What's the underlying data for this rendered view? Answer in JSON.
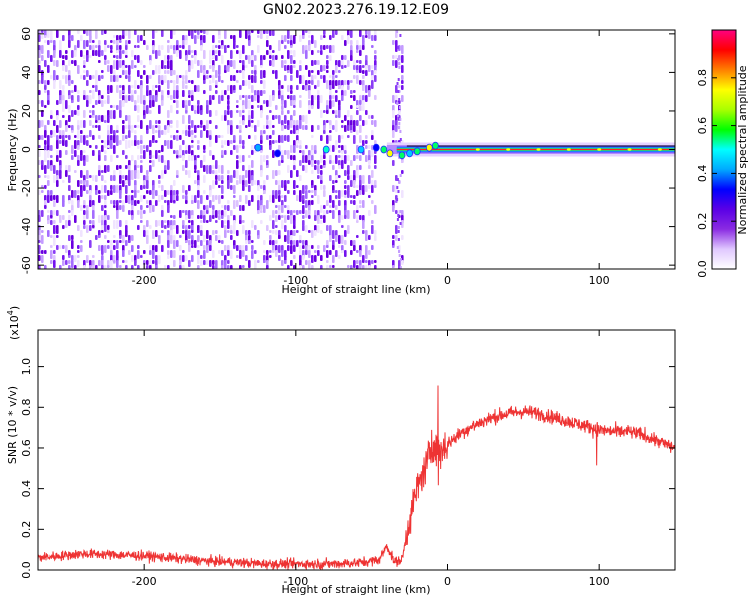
{
  "title": "GN02.2023.276.19.12.E09",
  "chart_data": [
    {
      "type": "heatmap",
      "name": "spectrogram",
      "xlabel": "Height of straight line (km)",
      "ylabel": "Frequency (Hz)",
      "xlim": [
        -270,
        150
      ],
      "ylim": [
        -62,
        62
      ],
      "x_ticks": [
        -200,
        -100,
        0,
        100
      ],
      "y_ticks": [
        -60,
        -40,
        -20,
        0,
        20,
        40,
        60
      ],
      "colorbar": {
        "label": "Normalized spectral amplitude",
        "range": [
          0,
          1
        ],
        "ticks": [
          0.0,
          0.2,
          0.4,
          0.6,
          0.8
        ],
        "tick_labels": [
          "0.0",
          "0.2",
          "0.4",
          "0.6",
          "0.8"
        ],
        "colors": [
          "#ffffff",
          "#e0c8ff",
          "#8a2be2",
          "#5a00e6",
          "#0000ff",
          "#00aaff",
          "#00ffff",
          "#00ff00",
          "#aaff00",
          "#ffff00",
          "#ff8000",
          "#ff0000",
          "#ff0080"
        ]
      },
      "noise_region_x": [
        -270,
        -30
      ],
      "signal_band": {
        "x_range": [
          -40,
          150
        ],
        "center_freq": 0
      }
    },
    {
      "type": "line",
      "name": "snr",
      "xlabel": "Height of straight line (km)",
      "ylabel": "SNR (10 * v/v)",
      "y_scale_label": "(x10",
      "y_scale_exp": "4",
      "y_scale_close": ")",
      "xlim": [
        -270,
        150
      ],
      "ylim": [
        0,
        1.18
      ],
      "x_ticks": [
        -200,
        -100,
        0,
        100
      ],
      "y_ticks": [
        0.0,
        0.2,
        0.4,
        0.6,
        0.8,
        1.0
      ],
      "y_tick_labels": [
        "0.0",
        "0.2",
        "0.4",
        "0.6",
        "0.8",
        "1.0"
      ],
      "color": "#ee3333",
      "x": [
        -270,
        -240,
        -200,
        -160,
        -120,
        -80,
        -60,
        -45,
        -40,
        -35,
        -30,
        -25,
        -20,
        -15,
        -10,
        -5,
        0,
        10,
        20,
        30,
        40,
        50,
        60,
        70,
        80,
        90,
        100,
        110,
        120,
        130,
        140,
        150
      ],
      "y": [
        0.06,
        0.08,
        0.07,
        0.045,
        0.03,
        0.03,
        0.035,
        0.05,
        0.12,
        0.04,
        0.05,
        0.25,
        0.4,
        0.5,
        0.6,
        0.58,
        0.62,
        0.68,
        0.72,
        0.75,
        0.77,
        0.78,
        0.77,
        0.75,
        0.73,
        0.71,
        0.69,
        0.68,
        0.68,
        0.66,
        0.63,
        0.6
      ]
    }
  ]
}
